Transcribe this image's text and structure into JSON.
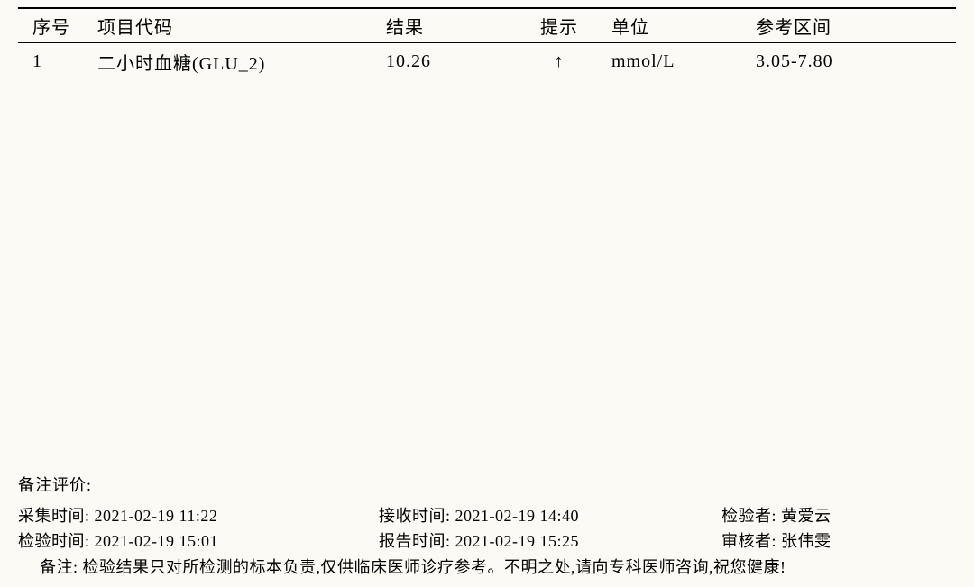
{
  "table": {
    "columns": {
      "seq": "序号",
      "item": "项目代码",
      "result": "结果",
      "hint": "提示",
      "unit": "单位",
      "reference": "参考区间"
    },
    "rows": [
      {
        "seq": "1",
        "item": "二小时血糖(GLU_2)",
        "result": "10.26",
        "hint": "↑",
        "unit": "mmol/L",
        "reference": "3.05-7.80"
      }
    ],
    "styling": {
      "header_border_top_width": 2,
      "header_border_bottom_width": 1.5,
      "border_color": "#000000",
      "font_size": 20,
      "background_color": "#fcfaf4",
      "text_color": "#000000"
    }
  },
  "footer": {
    "remark_label": "备注评价:",
    "meta": {
      "collect_time_label": "采集时间:",
      "collect_time_value": "2021-02-19 11:22",
      "receive_time_label": "接收时间:",
      "receive_time_value": "2021-02-19 14:40",
      "inspector_label": "检验者:",
      "inspector_value": "黄爱云",
      "test_time_label": "检验时间:",
      "test_time_value": "2021-02-19 15:01",
      "report_time_label": "报告时间:",
      "report_time_value": "2021-02-19 15:25",
      "reviewer_label": "审核者:",
      "reviewer_value": "张伟雯"
    },
    "note_label": "备注:",
    "note_text": "检验结果只对所检测的标本负责,仅供临床医师诊疗参考。不明之处,请向专科医师咨询,祝您健康!"
  }
}
